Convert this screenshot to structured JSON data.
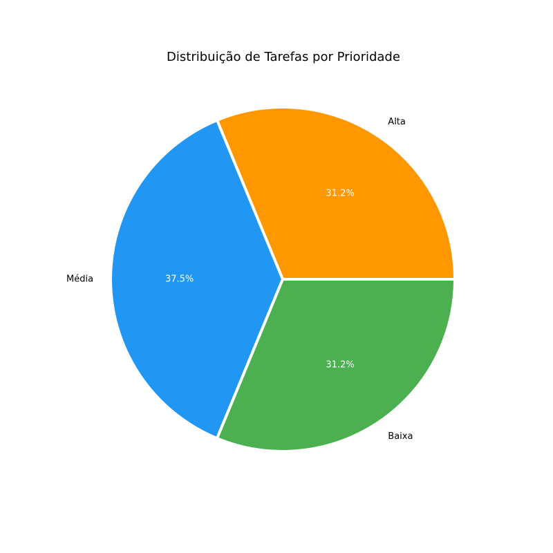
{
  "chart_data": {
    "type": "pie",
    "title": "Distribuição de Tarefas por Prioridade",
    "categories": [
      "Alta",
      "Média",
      "Baixa"
    ],
    "values": [
      31.2,
      37.5,
      31.2
    ],
    "percent_labels": [
      "31.2%",
      "37.5%",
      "31.2%"
    ],
    "colors": [
      "#FF9800",
      "#2196F3",
      "#4CAF50"
    ],
    "start_angle_deg": 0,
    "direction": "counterclockwise",
    "legend": "none"
  }
}
